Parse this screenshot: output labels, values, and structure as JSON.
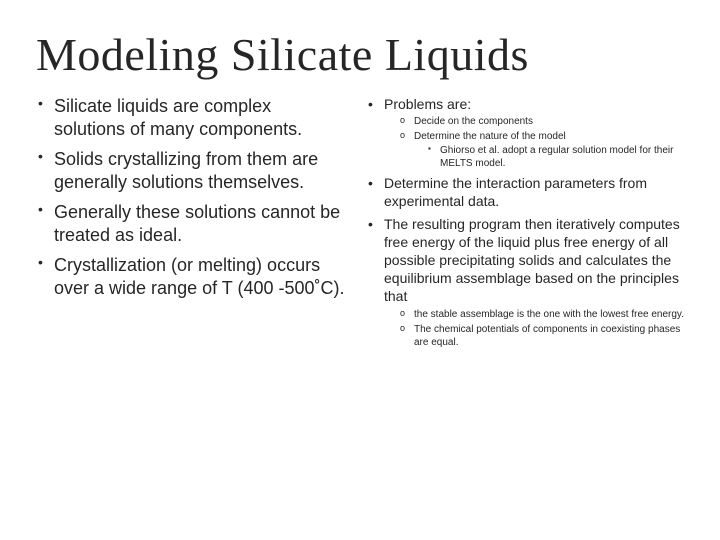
{
  "title": "Modeling Silicate Liquids",
  "left": {
    "items": [
      "Silicate liquids are complex solutions of many components.",
      "Solids crystallizing from them are generally solutions themselves.",
      "Generally these solutions cannot be treated as ideal.",
      "Crystallization (or melting) occurs over a wide range of T (400 -500˚C)."
    ]
  },
  "right": {
    "item0": "Problems are:",
    "item0_sub": [
      "Decide on the components",
      "Determine the nature of the model"
    ],
    "item0_subsub": "Ghiorso et al. adopt a regular solution model for their MELTS model.",
    "item1": "Determine the interaction parameters from experimental data.",
    "item2": "The resulting program then iteratively computes free energy of the liquid plus free energy of all possible precipitating solids and calculates the equilibrium assemblage based on the principles that",
    "item2_sub": [
      "the stable assemblage is the one with the lowest free energy.",
      "The chemical potentials of components in coexisting phases are equal."
    ]
  }
}
